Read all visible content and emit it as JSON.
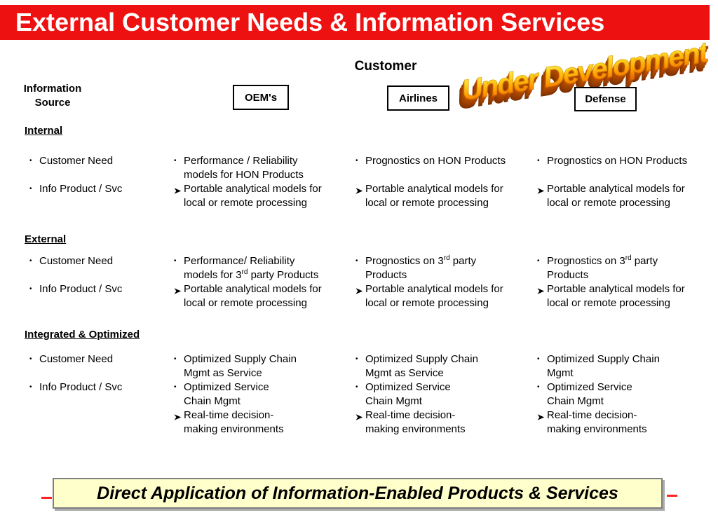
{
  "header": {
    "title": "External Customer Needs & Information Services"
  },
  "stamp": {
    "text": "Under Development"
  },
  "matrix": {
    "customer_label": "Customer",
    "info_source_line1": "Information",
    "info_source_line2": "Source",
    "columns": [
      "OEM's",
      "Airlines",
      "Defense"
    ],
    "row_labels": [
      "Customer Need",
      "Info Product / Svc"
    ],
    "sections": [
      {
        "label": "Internal",
        "cells": [
          {
            "items": [
              {
                "marker": "dot",
                "text": "Performance / Reliability\nmodels for HON Products"
              },
              {
                "marker": "arrow",
                "text": "Portable analytical models for\nlocal or remote processing"
              }
            ]
          },
          {
            "items": [
              {
                "marker": "dot",
                "text": "Prognostics on HON Products"
              },
              {
                "marker": "arrow",
                "text": "Portable analytical models for\nlocal or remote processing",
                "space_before": true
              }
            ]
          },
          {
            "items": [
              {
                "marker": "dot",
                "text": "Prognostics on HON Products"
              },
              {
                "marker": "arrow",
                "text": "Portable analytical models for\nlocal or remote processing",
                "space_before": true
              }
            ]
          }
        ]
      },
      {
        "label": "External",
        "cells": [
          {
            "items": [
              {
                "marker": "dot",
                "text": "Performance/ Reliability\nmodels for 3^rd^ party Products"
              },
              {
                "marker": "arrow",
                "text": "Portable analytical models for\nlocal or remote processing"
              }
            ]
          },
          {
            "items": [
              {
                "marker": "dot",
                "text": "Prognostics on 3^rd^ party\nProducts"
              },
              {
                "marker": "arrow",
                "text": "Portable analytical models for\nlocal or remote processing"
              }
            ]
          },
          {
            "items": [
              {
                "marker": "dot",
                "text": "Prognostics on 3^rd^ party\nProducts"
              },
              {
                "marker": "arrow",
                "text": "Portable analytical models for\nlocal or remote processing"
              }
            ]
          }
        ]
      },
      {
        "label": "Integrated & Optimized",
        "cells": [
          {
            "items": [
              {
                "marker": "dot",
                "text": "Optimized Supply Chain\nMgmt as Service"
              },
              {
                "marker": "dot",
                "text": "Optimized Service\nChain Mgmt"
              },
              {
                "marker": "arrow",
                "text": "Real-time decision-\nmaking environments"
              }
            ]
          },
          {
            "items": [
              {
                "marker": "dot",
                "text": "Optimized Supply Chain\nMgmt as Service"
              },
              {
                "marker": "dot",
                "text": "Optimized Service\nChain Mgmt"
              },
              {
                "marker": "arrow",
                "text": "Real-time decision-\nmaking environments"
              }
            ]
          },
          {
            "items": [
              {
                "marker": "dot",
                "text": "Optimized Supply Chain\nMgmt"
              },
              {
                "marker": "dot",
                "text": "Optimized Service\nChain Mgmt"
              },
              {
                "marker": "arrow",
                "text": "Real-time decision-\nmaking environments"
              }
            ]
          }
        ]
      }
    ]
  },
  "footer": {
    "text": "Direct Application of Information-Enabled Products & Services"
  },
  "colors": {
    "banner_red": "#ee1111",
    "footer_yellow": "#ffffcc",
    "stamp_orange_top": "#ffef66",
    "stamp_orange_bottom": "#ee6d00",
    "dash_red": "#ff2222"
  }
}
